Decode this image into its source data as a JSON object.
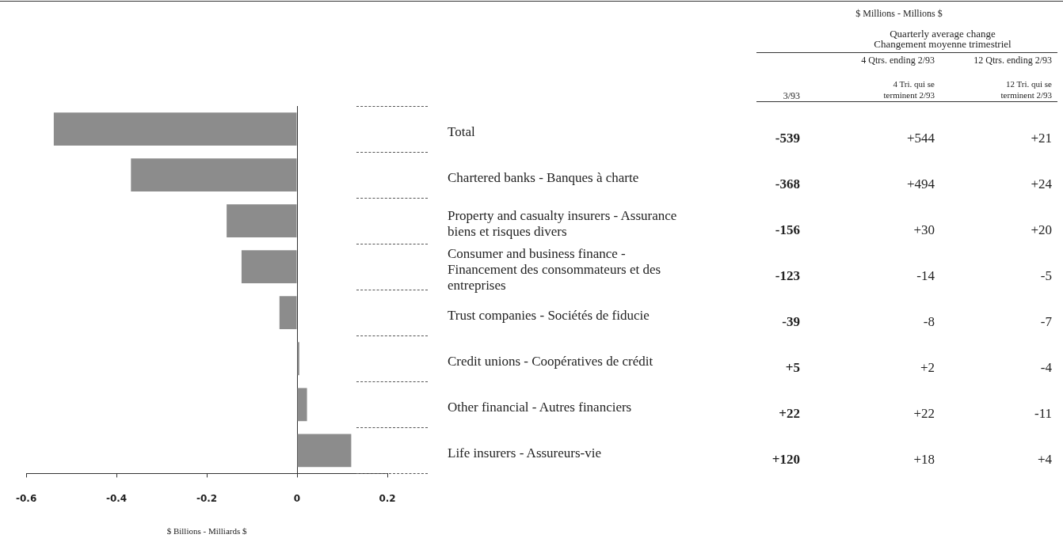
{
  "chart_data": [
    {
      "type": "bar",
      "orientation": "horizontal",
      "xlabel": "$ Billions - Milliards $",
      "categories": [
        "Total",
        "Chartered banks - Banques à charte",
        "Property and casualty insurers - Assurance biens et risques divers",
        "Consumer and business finance - Financement des consommateurs et des entreprises",
        "Trust companies - Sociétés de fiducie",
        "Credit unions - Coopératives de crédit",
        "Other financial - Autres financiers",
        "Life insurers - Assureurs-vie"
      ],
      "values": [
        -0.539,
        -0.368,
        -0.156,
        -0.123,
        -0.039,
        0.005,
        0.022,
        0.12
      ],
      "color": "#8c8c8c",
      "xlim": [
        -0.6,
        0.2
      ],
      "xticks": [
        -0.6,
        -0.4,
        -0.2,
        0,
        0.2
      ],
      "tick_labels": "x",
      "annotations": [
        "$ Millions - Millions $"
      ]
    },
    {
      "type": "other",
      "title": "Quarterly average change",
      "subtitle": "Changement moyenne trimestriel",
      "annotations": [
        "3/93",
        "4 Qtrs. ending 2/93",
        "12 Qtrs. ending 2/93",
        null,
        "4 Tri. qui se terminent 2/93",
        "12 Tri. qui se terminent 2/93",
        "-539",
        "+544",
        "+21",
        "-368",
        "+494",
        "+24",
        "-156",
        "+30",
        "+20",
        "-123",
        "-14",
        "-5",
        "-39",
        "-8",
        "-7",
        "+5",
        "+2",
        "-4",
        "+22",
        "+22",
        "-11",
        "+120",
        "+18",
        "+4"
      ]
    }
  ]
}
